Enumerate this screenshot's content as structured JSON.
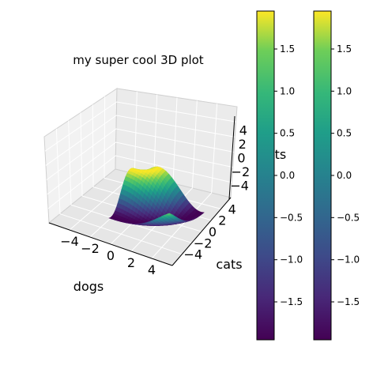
{
  "chart_data": {
    "type": "surface",
    "title": "my super cool 3D plot",
    "xlabel": "dogs",
    "ylabel": "cats",
    "zlabel": "cats",
    "zlabel_color": "#ff0000",
    "xlim": [
      -5,
      5
    ],
    "ylim": [
      -5,
      5
    ],
    "zlim": [
      -5,
      5
    ],
    "xticks": [
      "−4",
      "−2",
      "0",
      "2",
      "4"
    ],
    "yticks": [
      "−4",
      "−2",
      "0",
      "2",
      "4"
    ],
    "zticks": [
      "−4",
      "−2",
      "0",
      "2",
      "4"
    ],
    "grid": true,
    "colormap": "viridis",
    "surface_domain": {
      "x": [
        0,
        5
      ],
      "y": [
        -5,
        0
      ],
      "z_range": [
        -1.9,
        1.9
      ]
    },
    "colorbars": [
      {
        "ticks": [
          "1.5",
          "1.0",
          "0.5",
          "0.0",
          "−0.5",
          "−1.0",
          "−1.5"
        ],
        "range": [
          -1.95,
          1.95
        ]
      },
      {
        "ticks": [
          "1.5",
          "1.0",
          "0.5",
          "0.0",
          "−0.5",
          "−1.0",
          "−1.5"
        ],
        "range": [
          -1.95,
          1.95
        ]
      }
    ]
  }
}
